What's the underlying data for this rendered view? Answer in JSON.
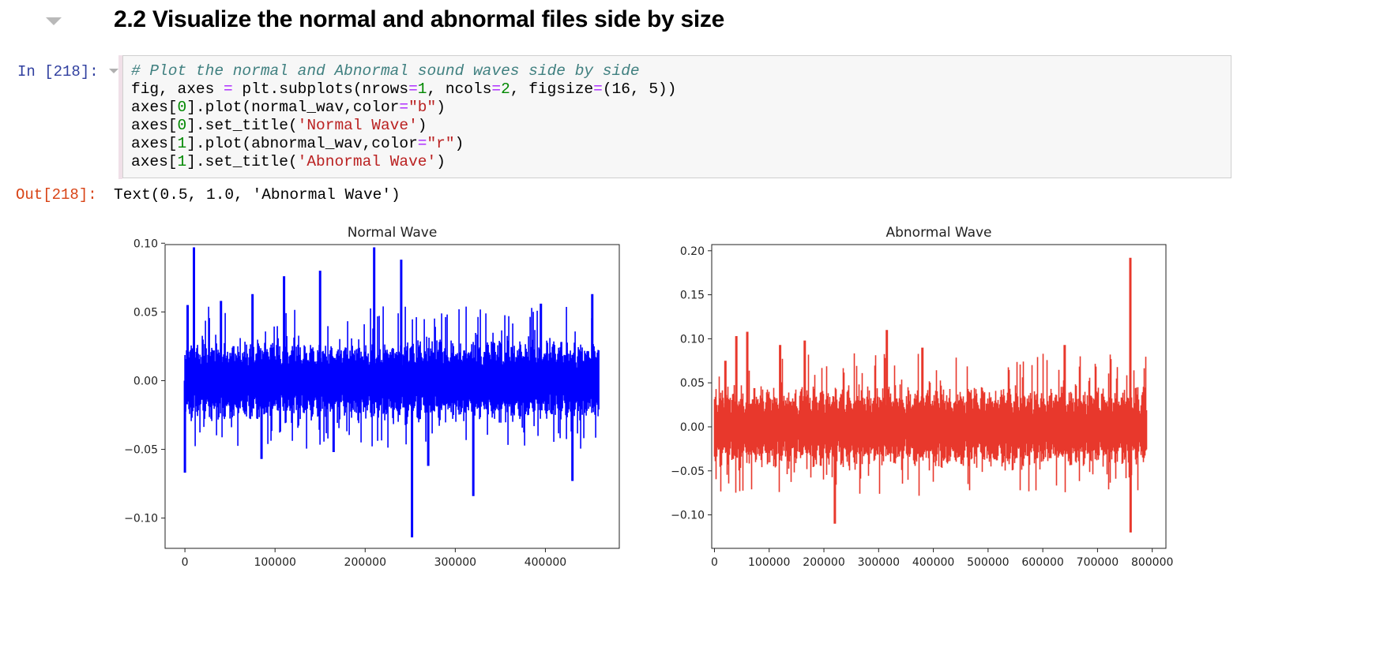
{
  "heading": {
    "number": "2.2",
    "title": "Visualize the normal and abnormal files side by size"
  },
  "input_cell": {
    "prompt": "In [218]:",
    "lines": [
      [
        {
          "t": "cm",
          "v": "# Plot the normal and Abnormal sound waves side by side"
        }
      ],
      [
        {
          "t": "",
          "v": "fig, axes "
        },
        {
          "t": "op",
          "v": "="
        },
        {
          "t": "",
          "v": " plt.subplots(nrows"
        },
        {
          "t": "op",
          "v": "="
        },
        {
          "t": "num",
          "v": "1"
        },
        {
          "t": "",
          "v": ", ncols"
        },
        {
          "t": "op",
          "v": "="
        },
        {
          "t": "num",
          "v": "2"
        },
        {
          "t": "",
          "v": ", figsize"
        },
        {
          "t": "op",
          "v": "="
        },
        {
          "t": "",
          "v": "(16, 5))"
        }
      ],
      [
        {
          "t": "",
          "v": "axes["
        },
        {
          "t": "num",
          "v": "0"
        },
        {
          "t": "",
          "v": "].plot(normal_wav,color"
        },
        {
          "t": "op",
          "v": "="
        },
        {
          "t": "str",
          "v": "\"b\""
        },
        {
          "t": "",
          "v": ")"
        }
      ],
      [
        {
          "t": "",
          "v": "axes["
        },
        {
          "t": "num",
          "v": "0"
        },
        {
          "t": "",
          "v": "].set_title("
        },
        {
          "t": "str",
          "v": "'Normal Wave'"
        },
        {
          "t": "",
          "v": ")"
        }
      ],
      [
        {
          "t": "",
          "v": "axes["
        },
        {
          "t": "num",
          "v": "1"
        },
        {
          "t": "",
          "v": "].plot(abnormal_wav,color"
        },
        {
          "t": "op",
          "v": "="
        },
        {
          "t": "str",
          "v": "\"r\""
        },
        {
          "t": "",
          "v": ")"
        }
      ],
      [
        {
          "t": "",
          "v": "axes["
        },
        {
          "t": "num",
          "v": "1"
        },
        {
          "t": "",
          "v": "].set_title("
        },
        {
          "t": "str",
          "v": "'Abnormal Wave'"
        },
        {
          "t": "",
          "v": ")"
        }
      ]
    ]
  },
  "output_cell": {
    "prompt": "Out[218]:",
    "text": "Text(0.5, 1.0, 'Abnormal Wave')"
  },
  "chart_data": [
    {
      "type": "line",
      "title": "Normal Wave",
      "color": "#0000ff",
      "xlabel": "",
      "ylabel": "",
      "xlim": [
        -22000,
        482000
      ],
      "ylim": [
        -0.122,
        0.099
      ],
      "xticks": [
        0,
        100000,
        200000,
        300000,
        400000
      ],
      "yticks": [
        -0.1,
        -0.05,
        0.0,
        0.05,
        0.1
      ],
      "xtick_labels": [
        "0",
        "100000",
        "200000",
        "300000",
        "400000"
      ],
      "ytick_labels": [
        "−0.10",
        "−0.05",
        "0.00",
        "0.05",
        "0.10"
      ],
      "n_samples": 460000,
      "base_amplitude": 0.018,
      "spikes": [
        {
          "x": 0,
          "y": -0.067
        },
        {
          "x": 3000,
          "y": 0.055
        },
        {
          "x": 10000,
          "y": 0.097
        },
        {
          "x": 40000,
          "y": 0.058
        },
        {
          "x": 75000,
          "y": 0.063
        },
        {
          "x": 85000,
          "y": -0.057
        },
        {
          "x": 110000,
          "y": 0.076
        },
        {
          "x": 150000,
          "y": 0.08
        },
        {
          "x": 165000,
          "y": -0.052
        },
        {
          "x": 210000,
          "y": 0.097
        },
        {
          "x": 240000,
          "y": 0.088
        },
        {
          "x": 252000,
          "y": -0.114
        },
        {
          "x": 270000,
          "y": -0.062
        },
        {
          "x": 320000,
          "y": -0.084
        },
        {
          "x": 395000,
          "y": 0.056
        },
        {
          "x": 430000,
          "y": -0.073
        },
        {
          "x": 452000,
          "y": 0.063
        }
      ],
      "grid": false
    },
    {
      "type": "line",
      "title": "Abnormal Wave",
      "color": "#e8382c",
      "xlabel": "",
      "ylabel": "",
      "xlim": [
        -5000,
        825000
      ],
      "ylim": [
        -0.138,
        0.207
      ],
      "xticks": [
        0,
        100000,
        200000,
        300000,
        400000,
        500000,
        600000,
        700000,
        800000
      ],
      "yticks": [
        -0.1,
        -0.05,
        0.0,
        0.05,
        0.1,
        0.15,
        0.2
      ],
      "xtick_labels": [
        "0",
        "100000",
        "200000",
        "300000",
        "400000",
        "500000",
        "600000",
        "700000",
        "800000"
      ],
      "ytick_labels": [
        "−0.10",
        "−0.05",
        "0.00",
        "0.05",
        "0.10",
        "0.15",
        "0.20"
      ],
      "n_samples": 790000,
      "base_amplitude": 0.028,
      "spikes": [
        {
          "x": 20000,
          "y": 0.075
        },
        {
          "x": 40000,
          "y": 0.103
        },
        {
          "x": 60000,
          "y": 0.108
        },
        {
          "x": 120000,
          "y": 0.093
        },
        {
          "x": 165000,
          "y": 0.098
        },
        {
          "x": 220000,
          "y": -0.11
        },
        {
          "x": 315000,
          "y": 0.11
        },
        {
          "x": 380000,
          "y": 0.09
        },
        {
          "x": 640000,
          "y": 0.093
        },
        {
          "x": 760000,
          "y": 0.192
        },
        {
          "x": 760500,
          "y": -0.12
        }
      ],
      "grid": false
    }
  ]
}
